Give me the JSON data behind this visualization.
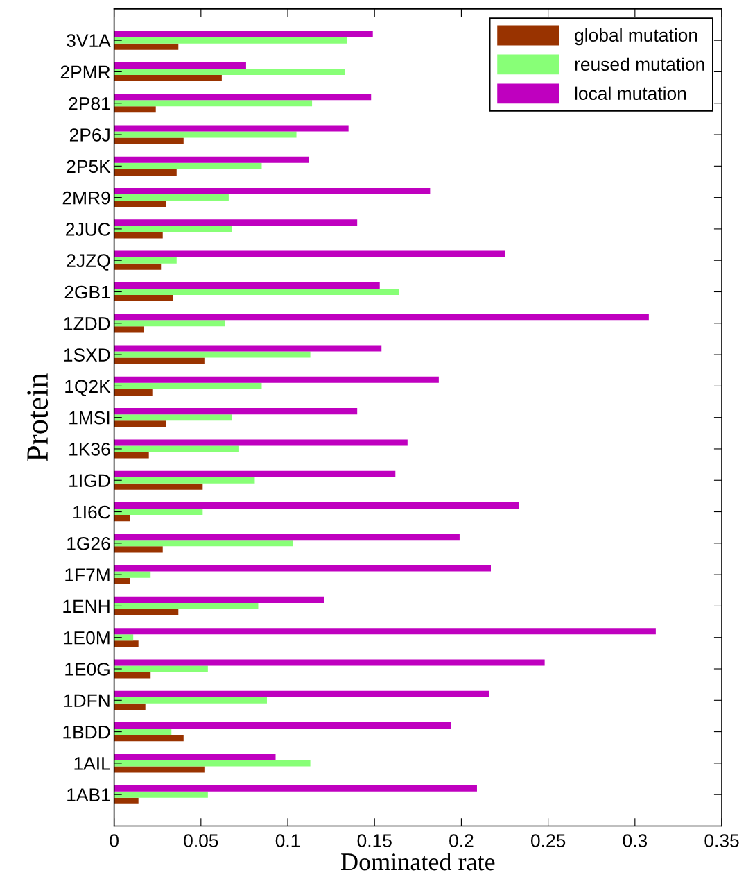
{
  "chart_data": {
    "type": "bar",
    "orientation": "horizontal",
    "xlabel": "Dominated rate",
    "ylabel": "Protein",
    "categories": [
      "3V1A",
      "2PMR",
      "2P81",
      "2P6J",
      "2P5K",
      "2MR9",
      "2JUC",
      "2JZQ",
      "2GB1",
      "1ZDD",
      "1SXD",
      "1Q2K",
      "1MSI",
      "1K36",
      "1IGD",
      "1I6C",
      "1G26",
      "1F7M",
      "1ENH",
      "1E0M",
      "1E0G",
      "1DFN",
      "1BDD",
      "1AIL",
      "1AB1"
    ],
    "series": [
      {
        "name": "global mutation",
        "color": "#993300",
        "values": [
          0.037,
          0.062,
          0.024,
          0.04,
          0.036,
          0.03,
          0.028,
          0.027,
          0.034,
          0.017,
          0.052,
          0.022,
          0.03,
          0.02,
          0.051,
          0.009,
          0.028,
          0.009,
          0.037,
          0.014,
          0.021,
          0.018,
          0.04,
          0.052,
          0.014
        ]
      },
      {
        "name": "reused mutation",
        "color": "#88ff77",
        "values": [
          0.134,
          0.133,
          0.114,
          0.105,
          0.085,
          0.066,
          0.068,
          0.036,
          0.164,
          0.064,
          0.113,
          0.085,
          0.068,
          0.072,
          0.081,
          0.051,
          0.103,
          0.021,
          0.083,
          0.011,
          0.054,
          0.088,
          0.033,
          0.113,
          0.054
        ]
      },
      {
        "name": "local mutation",
        "color": "#bf00bf",
        "values": [
          0.149,
          0.076,
          0.148,
          0.135,
          0.112,
          0.182,
          0.14,
          0.225,
          0.153,
          0.308,
          0.154,
          0.187,
          0.14,
          0.169,
          0.162,
          0.233,
          0.199,
          0.217,
          0.121,
          0.312,
          0.248,
          0.216,
          0.194,
          0.093,
          0.209
        ]
      }
    ],
    "xlim": [
      0,
      0.35
    ],
    "xticks": [
      0,
      0.05,
      0.1,
      0.15,
      0.2,
      0.25,
      0.3,
      0.35
    ],
    "legend": "top right",
    "grid": false
  }
}
